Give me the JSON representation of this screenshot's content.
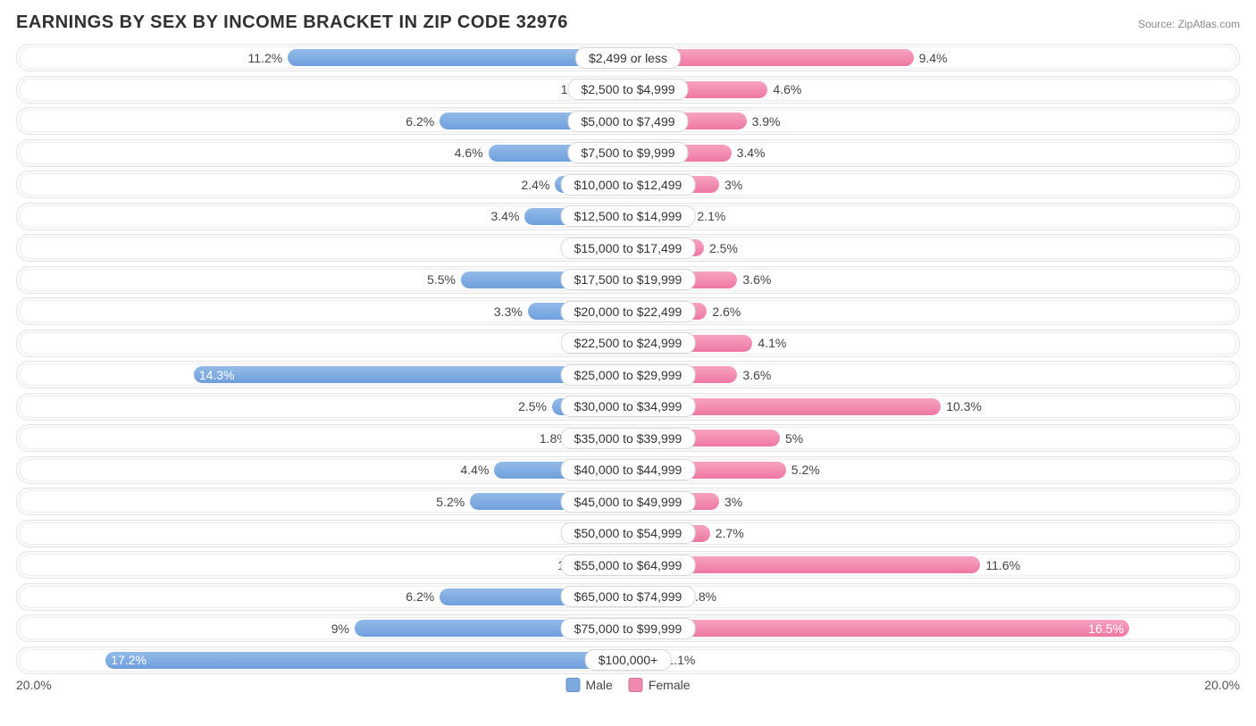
{
  "title": "EARNINGS BY SEX BY INCOME BRACKET IN ZIP CODE 32976",
  "source": "Source: ZipAtlas.com",
  "axis_max_pct": 20.0,
  "axis_label_left": "20.0%",
  "axis_label_right": "20.0%",
  "legend": {
    "male": {
      "label": "Male",
      "color": "#7aa9e0"
    },
    "female": {
      "label": "Female",
      "color": "#f188af"
    }
  },
  "colors": {
    "male_bar_top": "#93bbe8",
    "male_bar_bottom": "#6f9fdd",
    "female_bar_top": "#f7a3c0",
    "female_bar_bottom": "#ef77a3",
    "row_outer_bg": "#fafafa",
    "row_outer_border": "#e5e5e5",
    "row_inner_bg": "#ffffff",
    "row_inner_border": "#eeeeee",
    "pill_border": "#d8d8d8",
    "text": "#444444",
    "title_text": "#303030",
    "source_text": "#888888"
  },
  "label_inside_threshold_pct": 13.0,
  "rows": [
    {
      "category": "$2,499 or less",
      "male": 11.2,
      "female": 9.4
    },
    {
      "category": "$2,500 to $4,999",
      "male": 1.1,
      "female": 4.6
    },
    {
      "category": "$5,000 to $7,499",
      "male": 6.2,
      "female": 3.9
    },
    {
      "category": "$7,500 to $9,999",
      "male": 4.6,
      "female": 3.4
    },
    {
      "category": "$10,000 to $12,499",
      "male": 2.4,
      "female": 3.0
    },
    {
      "category": "$12,500 to $14,999",
      "male": 3.4,
      "female": 2.1
    },
    {
      "category": "$15,000 to $17,499",
      "male": 0.65,
      "female": 2.5
    },
    {
      "category": "$17,500 to $19,999",
      "male": 5.5,
      "female": 3.6
    },
    {
      "category": "$20,000 to $22,499",
      "male": 3.3,
      "female": 2.6
    },
    {
      "category": "$22,500 to $24,999",
      "male": 0.0,
      "female": 4.1
    },
    {
      "category": "$25,000 to $29,999",
      "male": 14.3,
      "female": 3.6
    },
    {
      "category": "$30,000 to $34,999",
      "male": 2.5,
      "female": 10.3
    },
    {
      "category": "$35,000 to $39,999",
      "male": 1.8,
      "female": 5.0
    },
    {
      "category": "$40,000 to $44,999",
      "male": 4.4,
      "female": 5.2
    },
    {
      "category": "$45,000 to $49,999",
      "male": 5.2,
      "female": 3.0
    },
    {
      "category": "$50,000 to $54,999",
      "male": 0.0,
      "female": 2.7
    },
    {
      "category": "$55,000 to $64,999",
      "male": 1.2,
      "female": 11.6
    },
    {
      "category": "$65,000 to $74,999",
      "male": 6.2,
      "female": 1.8
    },
    {
      "category": "$75,000 to $99,999",
      "male": 9.0,
      "female": 16.5
    },
    {
      "category": "$100,000+",
      "male": 17.2,
      "female": 1.1
    }
  ]
}
